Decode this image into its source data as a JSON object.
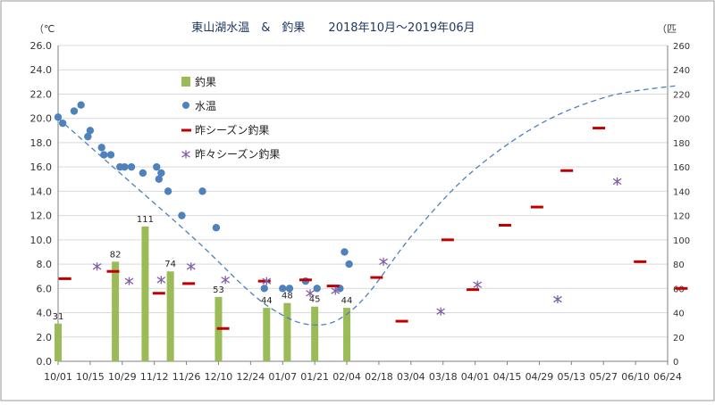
{
  "chart_data": {
    "type": "bar",
    "title": "東山湖水温　&　釣果　　2018年10月～2019年06月",
    "y_left_unit": "（℃",
    "y_right_unit": "（匹",
    "y_left_range": [
      0,
      26
    ],
    "y_left_ticks": [
      "0.0",
      "2.0",
      "4.0",
      "6.0",
      "8.0",
      "10.0",
      "12.0",
      "14.0",
      "16.0",
      "18.0",
      "20.0",
      "22.0",
      "24.0",
      "26.0"
    ],
    "y_right_range": [
      0,
      260
    ],
    "y_right_ticks": [
      "0",
      "20",
      "40",
      "60",
      "80",
      "100",
      "120",
      "140",
      "160",
      "180",
      "200",
      "220",
      "240",
      "260"
    ],
    "x_range": [
      0,
      266
    ],
    "x_ticks": [
      {
        "label": "10/01",
        "day": 0
      },
      {
        "label": "10/15",
        "day": 14
      },
      {
        "label": "10/29",
        "day": 28
      },
      {
        "label": "11/12",
        "day": 42
      },
      {
        "label": "11/26",
        "day": 56
      },
      {
        "label": "12/10",
        "day": 70
      },
      {
        "label": "12/24",
        "day": 84
      },
      {
        "label": "01/07",
        "day": 98
      },
      {
        "label": "01/21",
        "day": 112
      },
      {
        "label": "02/04",
        "day": 126
      },
      {
        "label": "02/18",
        "day": 140
      },
      {
        "label": "03/04",
        "day": 154
      },
      {
        "label": "03/18",
        "day": 168
      },
      {
        "label": "04/01",
        "day": 182
      },
      {
        "label": "04/15",
        "day": 196
      },
      {
        "label": "04/29",
        "day": 210
      },
      {
        "label": "05/13",
        "day": 224
      },
      {
        "label": "05/27",
        "day": 238
      },
      {
        "label": "06/10",
        "day": 252
      },
      {
        "label": "06/24",
        "day": 266
      }
    ],
    "grid": true,
    "legend_position": "top-left",
    "legend": {
      "catch": "釣果",
      "water_temp": "水温",
      "last_season": "昨シーズン釣果",
      "two_seasons_ago": "昨々シーズン釣果"
    },
    "colors": {
      "catch": "#9bbb59",
      "water_temp": "#4f81bd",
      "last_season": "#c00000",
      "two_seasons_ago": "#7f5fa8",
      "trend": "#4f81bd"
    },
    "catch_bars": [
      {
        "day": 0,
        "value": 31,
        "label": "31"
      },
      {
        "day": 25,
        "value": 82,
        "label": "82"
      },
      {
        "day": 38,
        "value": 111,
        "label": "111"
      },
      {
        "day": 49,
        "value": 74,
        "label": "74"
      },
      {
        "day": 70,
        "value": 53,
        "label": "53"
      },
      {
        "day": 91,
        "value": 44,
        "label": "44"
      },
      {
        "day": 100,
        "value": 48,
        "label": "48"
      },
      {
        "day": 112,
        "value": 45,
        "label": "45"
      },
      {
        "day": 126,
        "value": 44,
        "label": "44"
      }
    ],
    "water_temp": [
      {
        "day": 0,
        "value": 20.1
      },
      {
        "day": 2,
        "value": 19.6
      },
      {
        "day": 7,
        "value": 20.6
      },
      {
        "day": 10,
        "value": 21.1
      },
      {
        "day": 13,
        "value": 18.5
      },
      {
        "day": 14,
        "value": 19.0
      },
      {
        "day": 19,
        "value": 17.6
      },
      {
        "day": 20,
        "value": 17.0
      },
      {
        "day": 23,
        "value": 17.0
      },
      {
        "day": 27,
        "value": 16.0
      },
      {
        "day": 29,
        "value": 16.0
      },
      {
        "day": 32,
        "value": 16.0
      },
      {
        "day": 37,
        "value": 15.5
      },
      {
        "day": 43,
        "value": 16.0
      },
      {
        "day": 44,
        "value": 15.0
      },
      {
        "day": 45,
        "value": 15.5
      },
      {
        "day": 48,
        "value": 14.0
      },
      {
        "day": 54,
        "value": 12.0
      },
      {
        "day": 63,
        "value": 14.0
      },
      {
        "day": 69,
        "value": 11.0
      },
      {
        "day": 90,
        "value": 6.0
      },
      {
        "day": 98,
        "value": 6.0
      },
      {
        "day": 101,
        "value": 6.0
      },
      {
        "day": 108,
        "value": 6.6
      },
      {
        "day": 113,
        "value": 6.0
      },
      {
        "day": 123,
        "value": 6.0
      },
      {
        "day": 125,
        "value": 9.0
      },
      {
        "day": 127,
        "value": 8.0
      }
    ],
    "last_season": [
      {
        "day": 3,
        "value": 68
      },
      {
        "day": 24,
        "value": 74
      },
      {
        "day": 44,
        "value": 56
      },
      {
        "day": 57,
        "value": 64
      },
      {
        "day": 72,
        "value": 27
      },
      {
        "day": 90,
        "value": 66
      },
      {
        "day": 108,
        "value": 67
      },
      {
        "day": 120,
        "value": 62
      },
      {
        "day": 139,
        "value": 69
      },
      {
        "day": 150,
        "value": 33
      },
      {
        "day": 170,
        "value": 100
      },
      {
        "day": 181,
        "value": 59
      },
      {
        "day": 195,
        "value": 112
      },
      {
        "day": 209,
        "value": 127
      },
      {
        "day": 222,
        "value": 157
      },
      {
        "day": 236,
        "value": 192
      },
      {
        "day": 254,
        "value": 82
      },
      {
        "day": 272,
        "value": 60
      }
    ],
    "two_seasons_ago": [
      {
        "day": 17,
        "value": 78
      },
      {
        "day": 31,
        "value": 66
      },
      {
        "day": 45,
        "value": 67
      },
      {
        "day": 58,
        "value": 78
      },
      {
        "day": 73,
        "value": 67
      },
      {
        "day": 91,
        "value": 66
      },
      {
        "day": 110,
        "value": 56
      },
      {
        "day": 121,
        "value": 58
      },
      {
        "day": 142,
        "value": 82
      },
      {
        "day": 167,
        "value": 41
      },
      {
        "day": 183,
        "value": 63
      },
      {
        "day": 218,
        "value": 51
      },
      {
        "day": 244,
        "value": 148
      }
    ],
    "trend_curve": [
      {
        "day": 0,
        "value": 20.0
      },
      {
        "day": 30,
        "value": 15.0
      },
      {
        "day": 60,
        "value": 10.0
      },
      {
        "day": 85,
        "value": 5.5
      },
      {
        "day": 100,
        "value": 3.6
      },
      {
        "day": 111,
        "value": 3.0
      },
      {
        "day": 122,
        "value": 3.4
      },
      {
        "day": 135,
        "value": 5.5
      },
      {
        "day": 155,
        "value": 10.5
      },
      {
        "day": 180,
        "value": 15.5
      },
      {
        "day": 210,
        "value": 19.5
      },
      {
        "day": 240,
        "value": 21.8
      },
      {
        "day": 270,
        "value": 22.7
      }
    ]
  }
}
